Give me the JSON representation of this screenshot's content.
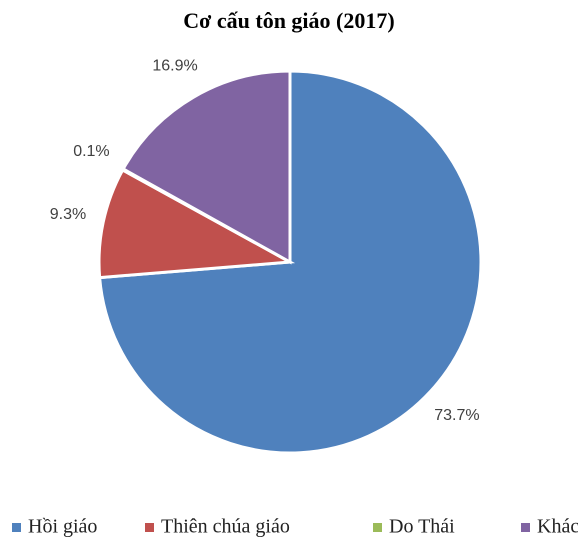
{
  "chart_data": {
    "type": "pie",
    "title": "Cơ cấu tôn giáo (2017)",
    "categories": [
      "Hồi giáo",
      "Thiên chúa giáo",
      "Do Thái",
      "Khác"
    ],
    "values": [
      73.7,
      9.3,
      0.1,
      16.9
    ],
    "value_labels": [
      "73.7%",
      "9.3%",
      "0.1%",
      "16.9%"
    ],
    "colors": [
      "#4f81bd",
      "#c0504d",
      "#9bbb59",
      "#8064a2"
    ],
    "legend": "bottom"
  }
}
